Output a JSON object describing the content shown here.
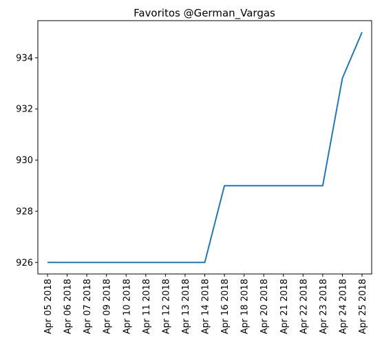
{
  "chart_data": {
    "type": "line",
    "title": "Favoritos @German_Vargas",
    "xlabel": "",
    "ylabel": "",
    "categories": [
      "Apr 05 2018",
      "Apr 06 2018",
      "Apr 07 2018",
      "Apr 09 2018",
      "Apr 10 2018",
      "Apr 11 2018",
      "Apr 12 2018",
      "Apr 13 2018",
      "Apr 14 2018",
      "Apr 16 2018",
      "Apr 18 2018",
      "Apr 20 2018",
      "Apr 21 2018",
      "Apr 22 2018",
      "Apr 23 2018",
      "Apr 24 2018",
      "Apr 25 2018"
    ],
    "series": [
      {
        "values": [
          926,
          926,
          926,
          926,
          926,
          926,
          926,
          926,
          926,
          929,
          929,
          929,
          929,
          929,
          929,
          933.2,
          935
        ],
        "color": "#1f77b4"
      }
    ],
    "yticks": [
      926,
      928,
      930,
      932,
      934
    ],
    "ylim": [
      925.55,
      935.45
    ],
    "grid": false,
    "legend": "none"
  }
}
